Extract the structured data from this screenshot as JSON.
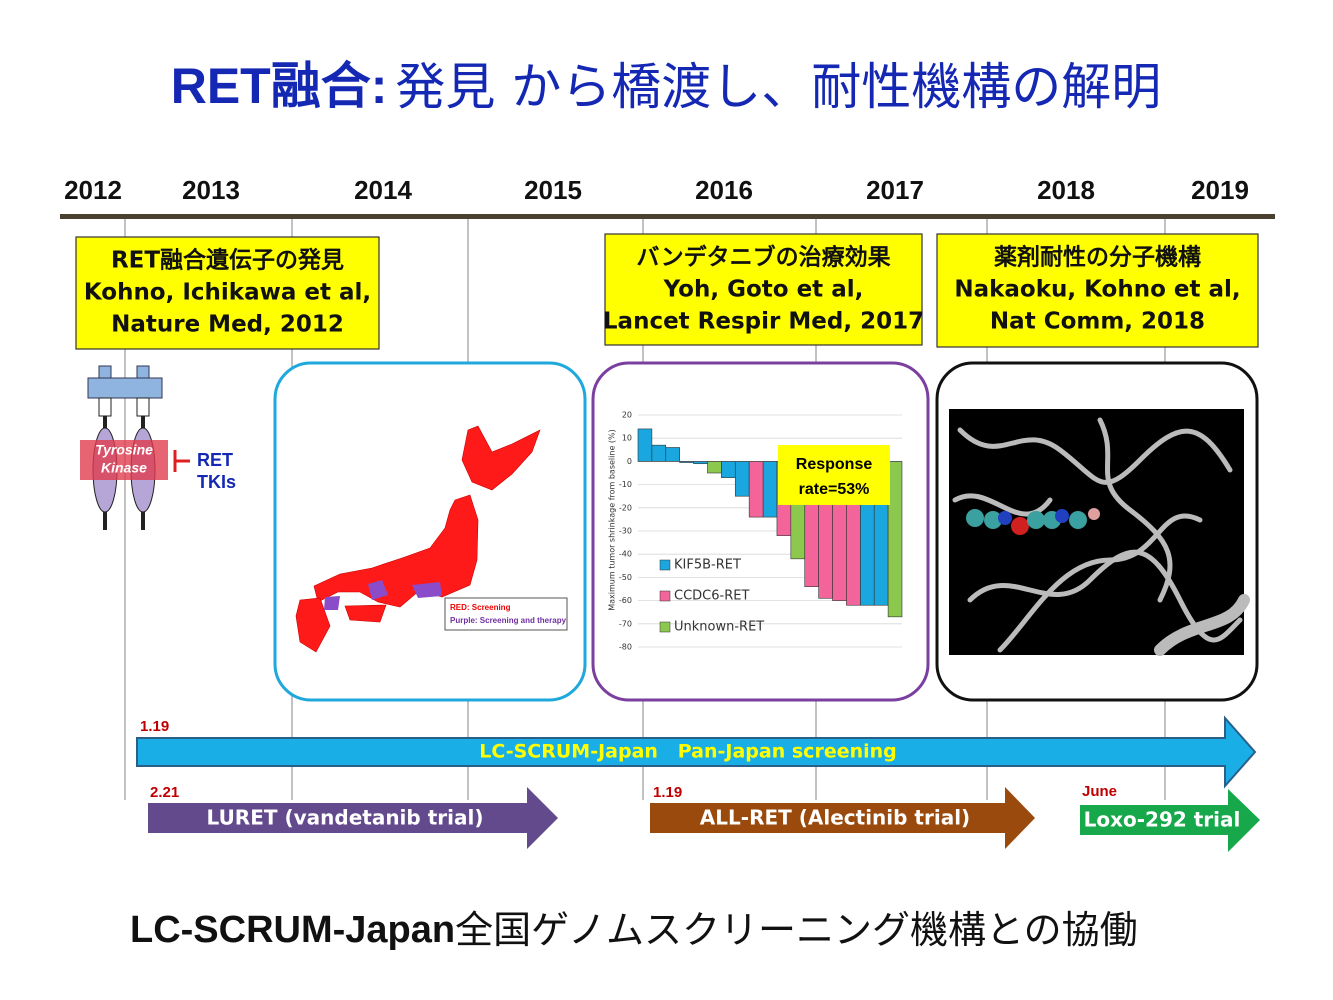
{
  "title": {
    "bold": "RET融合:",
    "rest": "発見 から橋渡し、耐性機構の解明"
  },
  "timeline": {
    "years": [
      "2012",
      "2013",
      "2014",
      "2015",
      "2016",
      "2017",
      "2018",
      "2019"
    ]
  },
  "boxes": [
    {
      "lines": [
        "RET融合遺伝子の発見",
        "Kohno, Ichikawa et al,",
        "Nature Med, 2012"
      ]
    },
    {
      "lines": [
        "バンデタニブの治療効果",
        "Yoh, Goto et al,",
        "Lancet Respir Med, 2017"
      ]
    },
    {
      "lines": [
        "薬剤耐性の分子機構",
        "Nakaoku, Kohno et al,",
        "Nat Comm, 2018"
      ]
    }
  ],
  "diagram": {
    "kinase": [
      "Tyrosine",
      "Kinase"
    ],
    "drug": [
      "RET",
      "TKIs"
    ]
  },
  "map_legend": [
    "RED: Screening",
    "Purple: Screening and therapy"
  ],
  "waterfall": {
    "type": "bar",
    "y_label": "Maximum tumor shrinkage from baseline (%)",
    "ylim": [
      -80,
      20
    ],
    "yticks": [
      20,
      10,
      0,
      -10,
      -20,
      -30,
      -40,
      -50,
      -60,
      -70,
      -80
    ],
    "series": [
      {
        "name": "KIF5B-RET",
        "color": "#1aa7e0",
        "values": [
          14,
          7,
          6,
          -0.5,
          -1,
          null,
          -7,
          -15,
          null,
          -24,
          null,
          null,
          null,
          null,
          null,
          null,
          -62,
          -62,
          null
        ]
      },
      {
        "name": "CCDC6-RET",
        "color": "#f2649a",
        "values": [
          null,
          null,
          null,
          null,
          null,
          null,
          null,
          null,
          -24,
          null,
          -32,
          null,
          -54,
          -59,
          -60,
          -62,
          null,
          null,
          null
        ]
      },
      {
        "name": "Unknown-RET",
        "color": "#8cc84e",
        "values": [
          null,
          null,
          null,
          null,
          null,
          -5,
          null,
          null,
          null,
          null,
          null,
          -42,
          null,
          null,
          null,
          null,
          null,
          null,
          -67
        ]
      }
    ],
    "annotation": [
      "Response",
      "rate=53%"
    ]
  },
  "arrows": [
    {
      "date": "1.19",
      "label": "LC-SCRUM-Japan   Pan-Japan screening"
    },
    {
      "date": "2.21",
      "label": "LURET (vandetanib trial)"
    },
    {
      "date": "1.19",
      "label": "ALL-RET (Alectinib trial)"
    },
    {
      "date": "June",
      "label": "Loxo-292 trial"
    }
  ],
  "footer": {
    "bold": "LC-SCRUM-Japan",
    "rest": "全国ゲノムスクリーニング機構との協働"
  }
}
